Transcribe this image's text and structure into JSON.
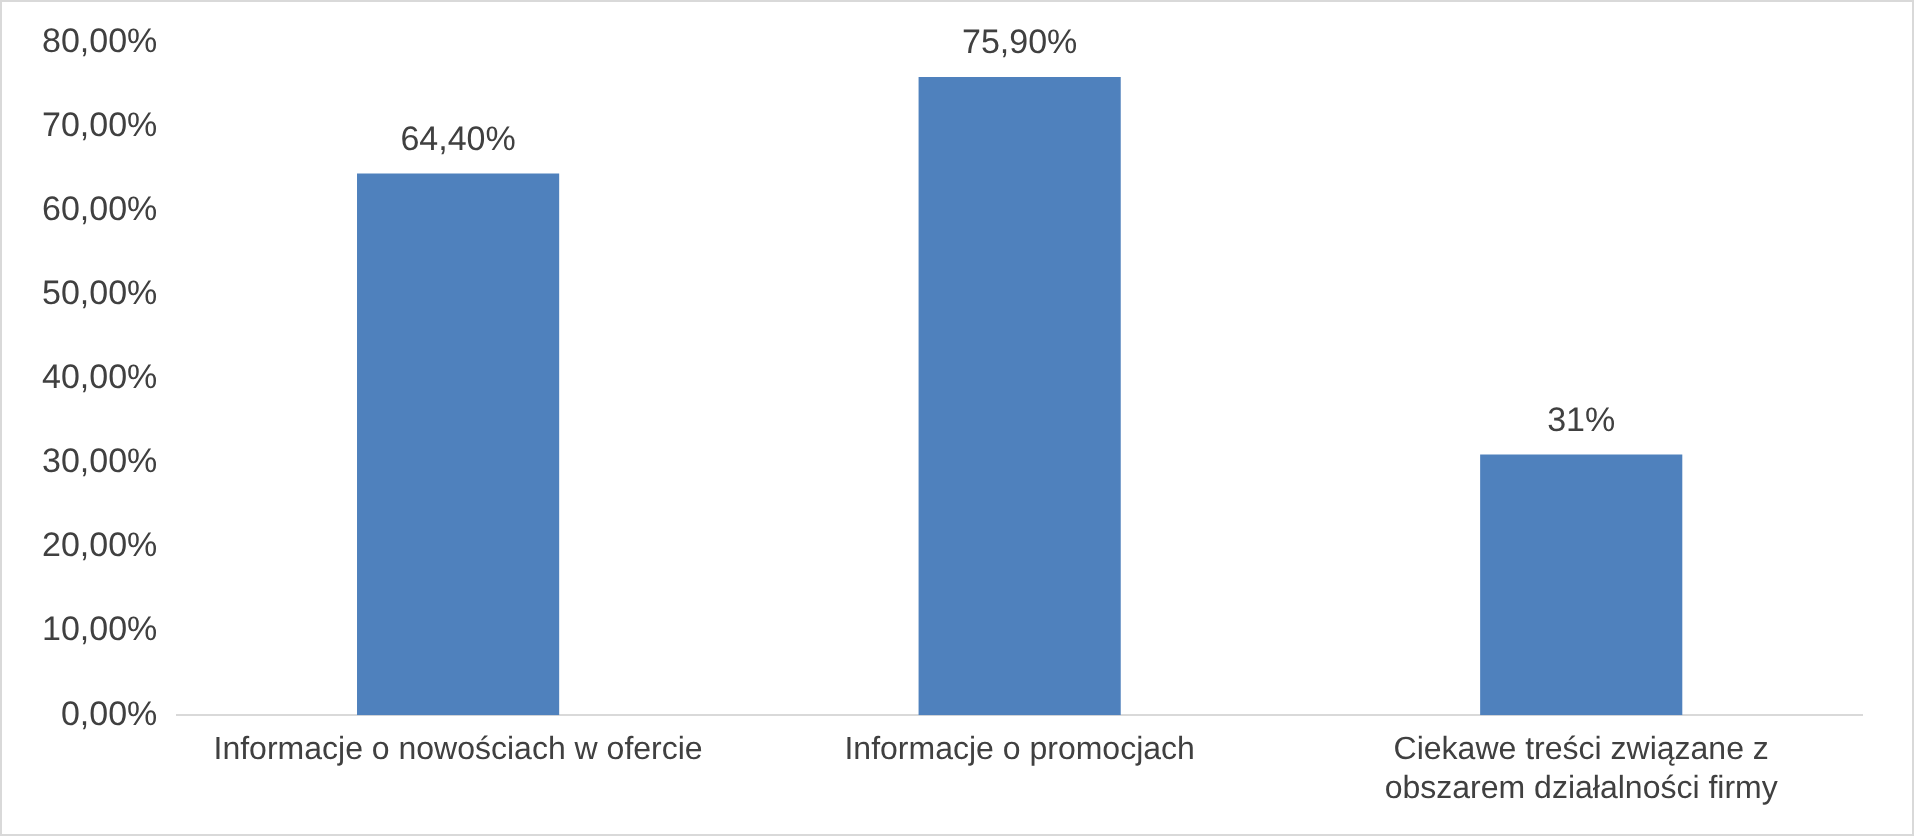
{
  "chart_data": {
    "type": "bar",
    "categories": [
      "Informacje o nowościach w ofercie",
      "Informacje o promocjach",
      "Ciekawe treści związane z obszarem działalności firmy"
    ],
    "values": [
      64.4,
      75.9,
      31
    ],
    "color": "#4f81bd",
    "value_labels": [
      "64,40%",
      "75,90%",
      "31%"
    ],
    "ylim": [
      0,
      80
    ],
    "yticks": [
      {
        "value": 0,
        "label": "0,00%"
      },
      {
        "value": 10,
        "label": "10,00%"
      },
      {
        "value": 20,
        "label": "20,00%"
      },
      {
        "value": 30,
        "label": "30,00%"
      },
      {
        "value": 40,
        "label": "40,00%"
      },
      {
        "value": 50,
        "label": "50,00%"
      },
      {
        "value": 60,
        "label": "60,00%"
      },
      {
        "value": 70,
        "label": "70,00%"
      },
      {
        "value": 80,
        "label": "80,00%"
      }
    ]
  }
}
